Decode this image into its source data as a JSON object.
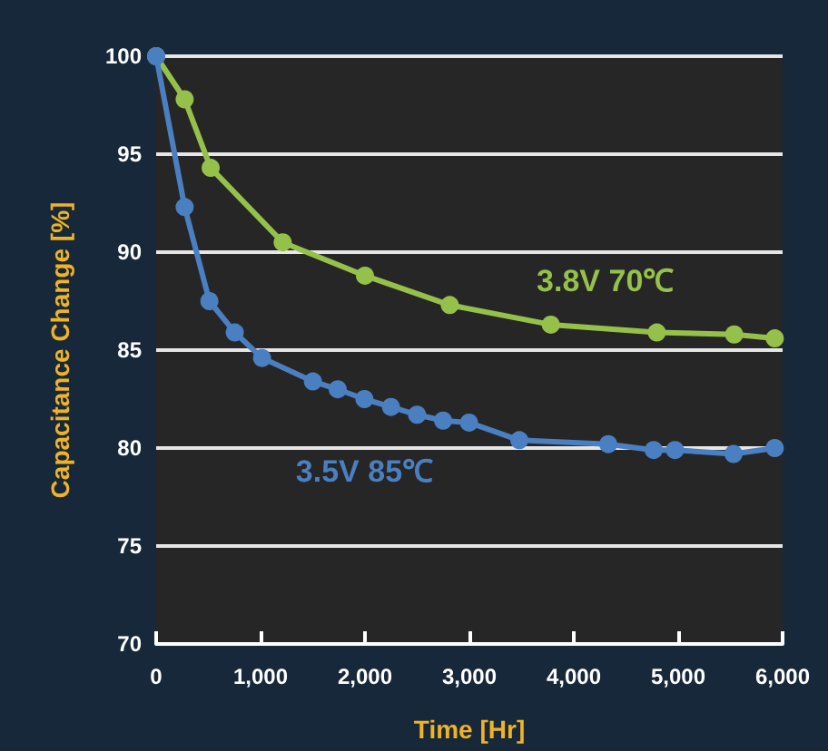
{
  "chart_data": {
    "type": "line",
    "xlabel": "Time [Hr]",
    "ylabel": "Capacitance Change [%]",
    "xlim": [
      0,
      6000
    ],
    "xticks": [
      {
        "value": 0,
        "label": "0"
      },
      {
        "value": 1000,
        "label": "1,000"
      },
      {
        "value": 2000,
        "label": "2,000"
      },
      {
        "value": 3000,
        "label": "3,000"
      },
      {
        "value": 4000,
        "label": "4,000"
      },
      {
        "value": 5000,
        "label": "5,000"
      },
      {
        "value": 6000,
        "label": "6,000"
      }
    ],
    "ylim": [
      70,
      100
    ],
    "yticks": [
      70,
      75,
      80,
      85,
      90,
      95,
      100
    ],
    "grid": "y",
    "legend": false,
    "marker": "circle",
    "line_style": "solid",
    "series": [
      {
        "name": "3.8V 70℃",
        "color": "#95c14b",
        "x": [
          0,
          273,
          522,
          1212,
          2000,
          2812,
          3780,
          4795,
          5536,
          5925
        ],
        "values": [
          100,
          97.8,
          94.3,
          90.5,
          88.8,
          87.3,
          86.3,
          85.9,
          85.8,
          85.6
        ]
      },
      {
        "name": "3.5V 85℃",
        "color": "#4a7fc1",
        "x": [
          0,
          273,
          510,
          753,
          1014,
          1501,
          1739,
          1995,
          2249,
          2499,
          2748,
          2997,
          3478,
          4330,
          4765,
          4969,
          5530,
          5925
        ],
        "values": [
          100,
          92.3,
          87.5,
          85.9,
          84.6,
          83.4,
          83.0,
          82.5,
          82.1,
          81.7,
          81.4,
          81.3,
          80.4,
          80.2,
          79.9,
          79.9,
          79.7,
          80.0
        ]
      }
    ]
  }
}
